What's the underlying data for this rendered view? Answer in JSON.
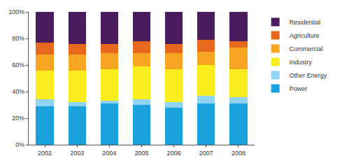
{
  "chart_data": {
    "type": "bar",
    "stacked": true,
    "grid": false,
    "legend": "right",
    "categories": [
      "2002",
      "2003",
      "2004",
      "2005",
      "2006",
      "2007",
      "2008"
    ],
    "series": [
      {
        "name": "Power",
        "color": "#1ba1dc",
        "values": [
          29,
          29,
          31,
          30,
          28,
          31,
          31
        ]
      },
      {
        "name": "Other Energy",
        "color": "#8fd4f3",
        "values": [
          5,
          3,
          2,
          4,
          4,
          6,
          5
        ]
      },
      {
        "name": "Industry",
        "color": "#f9ed20",
        "values": [
          22,
          24,
          24,
          25,
          25,
          23,
          21
        ]
      },
      {
        "name": "Commercial",
        "color": "#f6a623",
        "values": [
          12,
          12,
          12,
          10,
          12,
          10,
          16
        ]
      },
      {
        "name": "Agriculture",
        "color": "#e8681e",
        "values": [
          9,
          8,
          7,
          9,
          7,
          9,
          5
        ]
      },
      {
        "name": "Residential",
        "color": "#4b1d5e",
        "values": [
          23,
          24,
          24,
          22,
          24,
          21,
          22
        ]
      }
    ],
    "ylim": [
      0,
      100
    ],
    "yticks": [
      {
        "value": 0,
        "label": "0%"
      },
      {
        "value": 20,
        "label": "20%"
      },
      {
        "value": 40,
        "label": "40%"
      },
      {
        "value": 60,
        "label": "60%"
      },
      {
        "value": 80,
        "label": "80%"
      },
      {
        "value": 100,
        "label": "100%"
      }
    ]
  }
}
